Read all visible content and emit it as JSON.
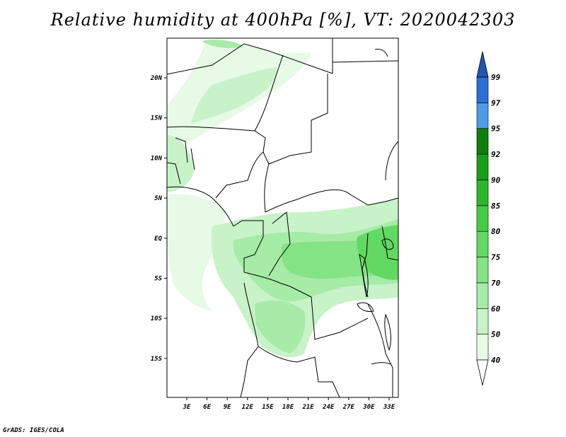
{
  "title": "Relative humidity at 400hPa [%], VT: 2020042303",
  "credit": "GrADS: IGES/COLA",
  "map": {
    "lat_ticks": [
      "20N",
      "15N",
      "10N",
      "5N",
      "EQ",
      "5S",
      "10S",
      "15S"
    ],
    "lon_ticks": [
      "3E",
      "6E",
      "9E",
      "12E",
      "15E",
      "18E",
      "21E",
      "24E",
      "27E",
      "30E",
      "33E"
    ]
  },
  "colorbar": {
    "levels": [
      "40",
      "50",
      "60",
      "70",
      "75",
      "80",
      "85",
      "90",
      "92",
      "95",
      "97",
      "99"
    ],
    "colors": [
      "#ffffff",
      "#e6fae6",
      "#c8f2c8",
      "#a6eba6",
      "#84e384",
      "#62d962",
      "#44cc44",
      "#2ab82a",
      "#1a9e1a",
      "#0e7f0e",
      "#4d9be6",
      "#2a6fd6",
      "#1f55b8"
    ]
  }
}
